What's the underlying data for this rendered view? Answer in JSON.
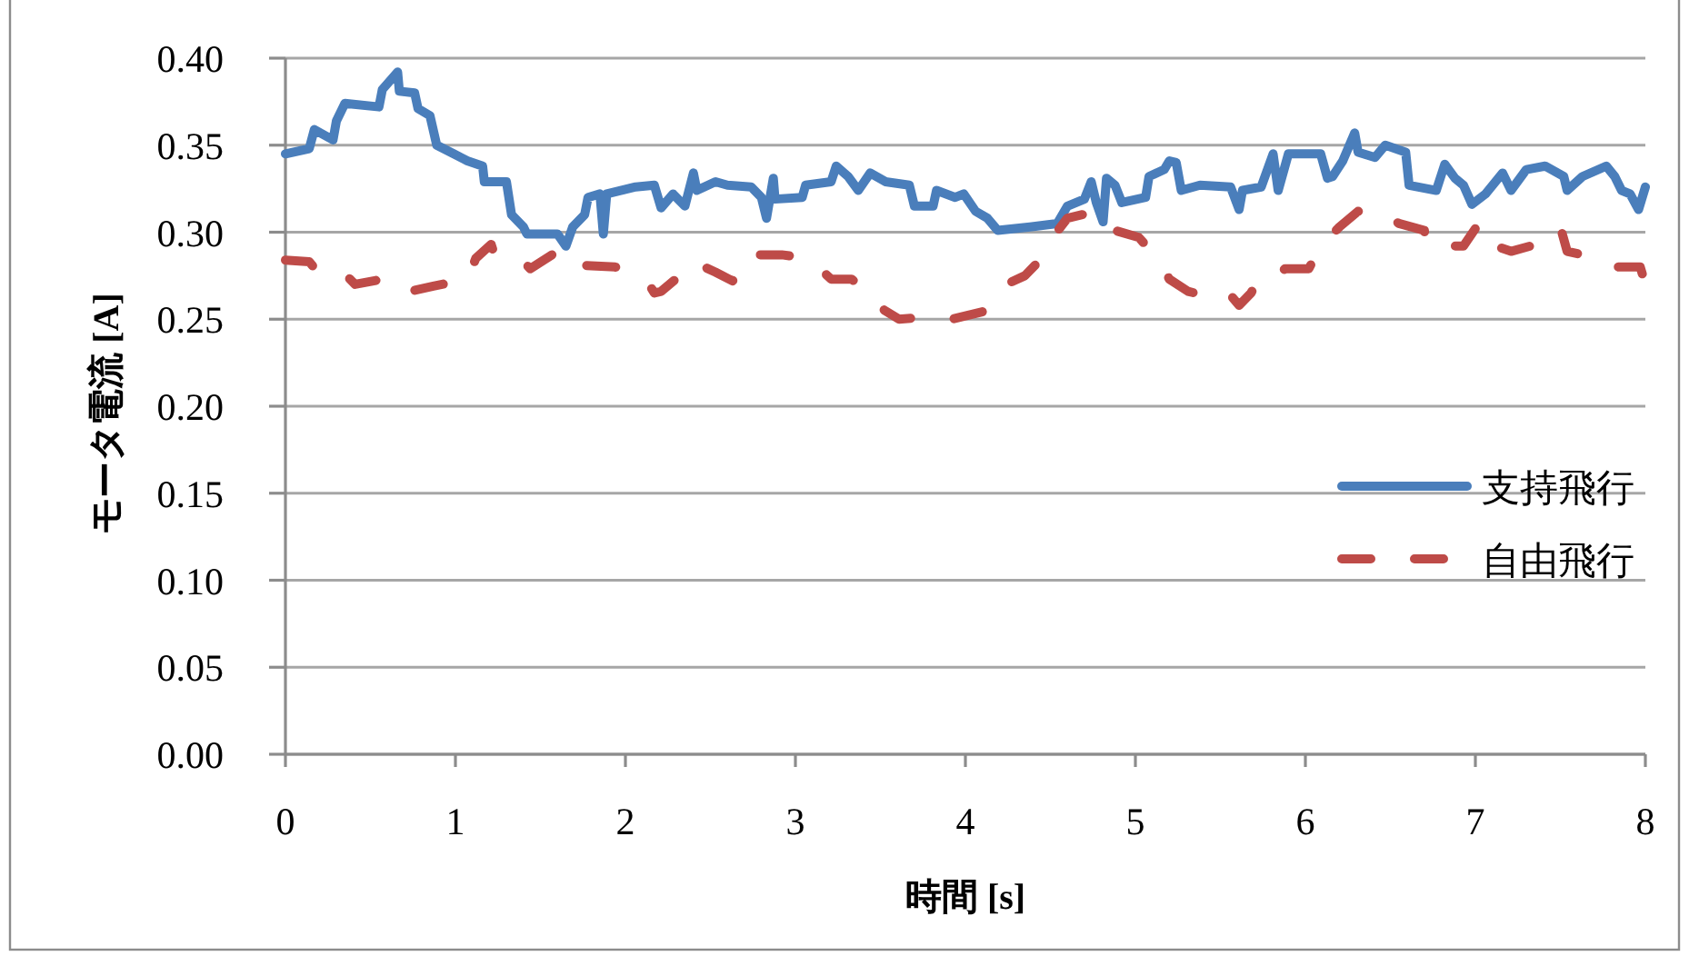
{
  "chart_data": {
    "type": "line",
    "xlabel": "時間 [s]",
    "ylabel": "モータ電流 [A]",
    "xlim": [
      0,
      8
    ],
    "xticks": [
      0,
      1,
      2,
      3,
      4,
      5,
      6,
      7,
      8
    ],
    "ylim": [
      0,
      0.4
    ],
    "yticks": [
      {
        "value": 0,
        "label": "0.00"
      },
      {
        "value": 0.05,
        "label": "0.05"
      },
      {
        "value": 0.1,
        "label": "0.10"
      },
      {
        "value": 0.15,
        "label": "0.15"
      },
      {
        "value": 0.2,
        "label": "0.20"
      },
      {
        "value": 0.25,
        "label": "0.25"
      },
      {
        "value": 0.3,
        "label": "0.30"
      },
      {
        "value": 0.35,
        "label": "0.35"
      },
      {
        "value": 0.4,
        "label": "0.40"
      }
    ],
    "grid": "y",
    "legend": "right",
    "series": [
      {
        "name": "支持飛行",
        "color": "#4a7ebb",
        "line_style": "solid",
        "x": [
          0,
          0.14,
          0.17,
          0.28,
          0.3,
          0.35,
          0.55,
          0.57,
          0.66,
          0.67,
          0.76,
          0.78,
          0.85,
          0.89,
          0.99,
          1.07,
          1.16,
          1.17,
          1.3,
          1.33,
          1.4,
          1.42,
          1.6,
          1.65,
          1.69,
          1.76,
          1.78,
          1.85,
          1.87,
          1.89,
          2.06,
          2.17,
          2.21,
          2.28,
          2.35,
          2.4,
          2.42,
          2.53,
          2.6,
          2.74,
          2.8,
          2.83,
          2.87,
          2.88,
          3.04,
          3.06,
          3.21,
          3.24,
          3.31,
          3.37,
          3.44,
          3.53,
          3.67,
          3.7,
          3.81,
          3.83,
          3.94,
          3.99,
          4.06,
          4.13,
          4.19,
          4.38,
          4.54,
          4.6,
          4.7,
          4.74,
          4.77,
          4.81,
          4.83,
          4.88,
          4.92,
          5.06,
          5.08,
          5.17,
          5.2,
          5.24,
          5.27,
          5.38,
          5.56,
          5.61,
          5.63,
          5.74,
          5.81,
          5.84,
          5.9,
          6.09,
          6.13,
          6.16,
          6.22,
          6.29,
          6.31,
          6.41,
          6.47,
          6.59,
          6.61,
          6.77,
          6.82,
          6.88,
          6.93,
          6.98,
          7.06,
          7.16,
          7.21,
          7.3,
          7.41,
          7.52,
          7.54,
          7.63,
          7.77,
          7.82,
          7.86,
          7.91,
          7.96,
          8.0
        ],
        "values": [
          0.345,
          0.348,
          0.359,
          0.353,
          0.364,
          0.374,
          0.372,
          0.382,
          0.392,
          0.381,
          0.38,
          0.371,
          0.367,
          0.35,
          0.345,
          0.341,
          0.338,
          0.329,
          0.329,
          0.31,
          0.303,
          0.299,
          0.299,
          0.292,
          0.303,
          0.31,
          0.32,
          0.322,
          0.299,
          0.322,
          0.326,
          0.327,
          0.314,
          0.322,
          0.315,
          0.334,
          0.324,
          0.329,
          0.327,
          0.326,
          0.32,
          0.308,
          0.331,
          0.319,
          0.32,
          0.327,
          0.329,
          0.338,
          0.332,
          0.324,
          0.334,
          0.329,
          0.327,
          0.315,
          0.315,
          0.324,
          0.32,
          0.322,
          0.312,
          0.308,
          0.301,
          0.303,
          0.305,
          0.315,
          0.319,
          0.329,
          0.317,
          0.306,
          0.331,
          0.327,
          0.317,
          0.32,
          0.332,
          0.336,
          0.341,
          0.34,
          0.324,
          0.327,
          0.326,
          0.313,
          0.324,
          0.326,
          0.345,
          0.324,
          0.345,
          0.345,
          0.331,
          0.332,
          0.341,
          0.357,
          0.346,
          0.343,
          0.35,
          0.346,
          0.327,
          0.324,
          0.339,
          0.331,
          0.327,
          0.316,
          0.322,
          0.334,
          0.324,
          0.336,
          0.338,
          0.332,
          0.324,
          0.332,
          0.338,
          0.332,
          0.324,
          0.322,
          0.313,
          0.326
        ]
      },
      {
        "name": "自由飛行",
        "color": "#be4b48",
        "line_style": "dashed",
        "x": [
          0,
          0.14,
          0.21,
          0.35,
          0.41,
          0.57,
          0.69,
          0.87,
          1.07,
          1.12,
          1.21,
          1.23,
          1.37,
          1.44,
          1.6,
          1.65,
          1.74,
          1.94,
          2.12,
          2.17,
          2.21,
          2.32,
          2.35,
          2.42,
          2.53,
          2.63,
          2.69,
          2.72,
          2.92,
          3.08,
          3.21,
          3.33,
          3.45,
          3.51,
          3.61,
          3.74,
          3.92,
          4.13,
          4.24,
          4.35,
          4.45,
          4.52,
          4.6,
          4.77,
          4.88,
          5.02,
          5.13,
          5.2,
          5.31,
          5.43,
          5.54,
          5.61,
          5.68,
          5.72,
          5.79,
          5.88,
          6.02,
          6.09,
          6.2,
          6.31,
          6.43,
          6.55,
          6.7,
          6.71,
          6.93,
          7.02,
          7.06,
          7.21,
          7.36,
          7.5,
          7.54,
          7.72,
          7.81,
          7.97,
          8.0
        ],
        "values": [
          0.284,
          0.283,
          0.275,
          0.276,
          0.27,
          0.273,
          0.265,
          0.269,
          0.273,
          0.285,
          0.293,
          0.287,
          0.286,
          0.279,
          0.289,
          0.281,
          0.281,
          0.28,
          0.273,
          0.265,
          0.266,
          0.275,
          0.282,
          0.282,
          0.277,
          0.272,
          0.277,
          0.287,
          0.287,
          0.285,
          0.273,
          0.273,
          0.265,
          0.256,
          0.25,
          0.251,
          0.25,
          0.255,
          0.27,
          0.275,
          0.285,
          0.298,
          0.308,
          0.312,
          0.301,
          0.297,
          0.285,
          0.273,
          0.266,
          0.263,
          0.266,
          0.258,
          0.265,
          0.272,
          0.271,
          0.279,
          0.279,
          0.292,
          0.303,
          0.312,
          0.313,
          0.305,
          0.301,
          0.292,
          0.292,
          0.305,
          0.294,
          0.289,
          0.293,
          0.303,
          0.289,
          0.285,
          0.28,
          0.28,
          0.27
        ]
      }
    ]
  }
}
